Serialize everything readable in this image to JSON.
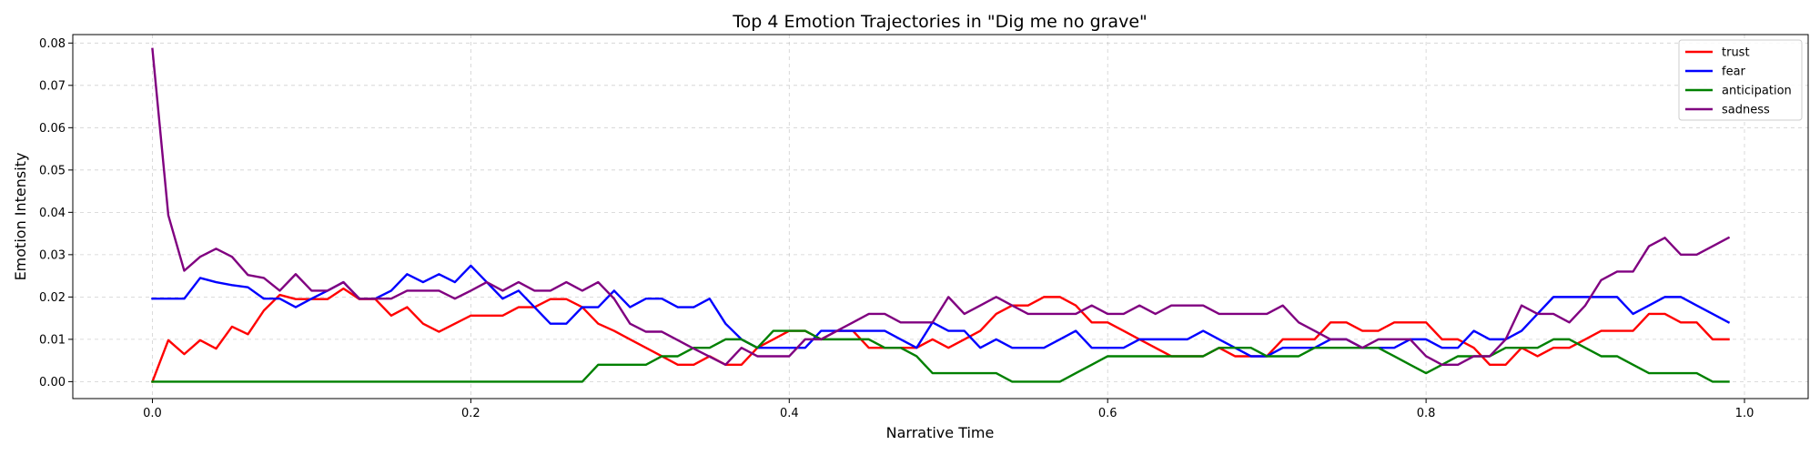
{
  "chart_data": {
    "type": "line",
    "title": "Top 4 Emotion Trajectories in \"Dig me no grave\"",
    "xlabel": "Narrative Time",
    "ylabel": "Emotion Intensity",
    "xlim": [
      -0.05,
      1.04
    ],
    "ylim": [
      -0.004,
      0.082
    ],
    "xticks": [
      0.0,
      0.2,
      0.4,
      0.6,
      0.8,
      1.0
    ],
    "xtick_labels": [
      "0.0",
      "0.2",
      "0.4",
      "0.6",
      "0.8",
      "1.0"
    ],
    "yticks": [
      0.0,
      0.01,
      0.02,
      0.03,
      0.04,
      0.05,
      0.06,
      0.07,
      0.08
    ],
    "ytick_labels": [
      "0.00",
      "0.01",
      "0.02",
      "0.03",
      "0.04",
      "0.05",
      "0.06",
      "0.07",
      "0.08"
    ],
    "grid": true,
    "legend_position": "top-right",
    "x": [
      0.0,
      0.01,
      0.02,
      0.03,
      0.04,
      0.05,
      0.06,
      0.07,
      0.08,
      0.09,
      0.1,
      0.11,
      0.12,
      0.13,
      0.14,
      0.15,
      0.16,
      0.17,
      0.18,
      0.19,
      0.2,
      0.21,
      0.22,
      0.23,
      0.24,
      0.25,
      0.26,
      0.27,
      0.28,
      0.29,
      0.3,
      0.31,
      0.32,
      0.33,
      0.34,
      0.35,
      0.36,
      0.37,
      0.38,
      0.39,
      0.4,
      0.41,
      0.42,
      0.43,
      0.44,
      0.45,
      0.46,
      0.47,
      0.48,
      0.49,
      0.5,
      0.51,
      0.52,
      0.53,
      0.54,
      0.55,
      0.56,
      0.57,
      0.58,
      0.59,
      0.6,
      0.61,
      0.62,
      0.63,
      0.64,
      0.65,
      0.66,
      0.67,
      0.68,
      0.69,
      0.7,
      0.71,
      0.72,
      0.73,
      0.74,
      0.75,
      0.76,
      0.77,
      0.78,
      0.79,
      0.8,
      0.81,
      0.82,
      0.83,
      0.84,
      0.85,
      0.86,
      0.87,
      0.88,
      0.89,
      0.9,
      0.91,
      0.92,
      0.93,
      0.94,
      0.95,
      0.96,
      0.97,
      0.98,
      0.99
    ],
    "series": [
      {
        "name": "trust",
        "color": "#ff0000",
        "values": [
          0.0,
          0.0098,
          0.0065,
          0.0098,
          0.0078,
          0.013,
          0.0112,
          0.0168,
          0.0205,
          0.0195,
          0.0195,
          0.0195,
          0.022,
          0.0195,
          0.0195,
          0.0156,
          0.0176,
          0.0137,
          0.0118,
          0.0137,
          0.0156,
          0.0156,
          0.0156,
          0.0176,
          0.0176,
          0.0195,
          0.0195,
          0.0176,
          0.0137,
          0.012,
          0.01,
          0.008,
          0.006,
          0.004,
          0.004,
          0.006,
          0.004,
          0.004,
          0.008,
          0.01,
          0.012,
          0.012,
          0.01,
          0.012,
          0.012,
          0.008,
          0.008,
          0.008,
          0.008,
          0.01,
          0.008,
          0.01,
          0.012,
          0.016,
          0.018,
          0.018,
          0.02,
          0.02,
          0.018,
          0.014,
          0.014,
          0.012,
          0.01,
          0.008,
          0.006,
          0.006,
          0.006,
          0.008,
          0.006,
          0.006,
          0.006,
          0.01,
          0.01,
          0.01,
          0.014,
          0.014,
          0.012,
          0.012,
          0.014,
          0.014,
          0.014,
          0.01,
          0.01,
          0.008,
          0.004,
          0.004,
          0.008,
          0.006,
          0.008,
          0.008,
          0.01,
          0.012,
          0.012,
          0.012,
          0.016,
          0.016,
          0.014,
          0.014,
          0.01,
          0.01
        ]
      },
      {
        "name": "fear",
        "color": "#0000ff",
        "values": [
          0.0196,
          0.0196,
          0.0196,
          0.0245,
          0.0235,
          0.0228,
          0.0223,
          0.0196,
          0.0196,
          0.0176,
          0.0196,
          0.0215,
          0.0235,
          0.0196,
          0.0196,
          0.0215,
          0.0254,
          0.0235,
          0.0254,
          0.0235,
          0.0274,
          0.0235,
          0.0196,
          0.0215,
          0.0176,
          0.0137,
          0.0137,
          0.0176,
          0.0176,
          0.0215,
          0.0176,
          0.0196,
          0.0196,
          0.0176,
          0.0176,
          0.0196,
          0.0137,
          0.01,
          0.008,
          0.008,
          0.008,
          0.008,
          0.012,
          0.012,
          0.012,
          0.012,
          0.012,
          0.01,
          0.008,
          0.014,
          0.012,
          0.012,
          0.008,
          0.01,
          0.008,
          0.008,
          0.008,
          0.01,
          0.012,
          0.008,
          0.008,
          0.008,
          0.01,
          0.01,
          0.01,
          0.01,
          0.012,
          0.01,
          0.008,
          0.006,
          0.006,
          0.008,
          0.008,
          0.008,
          0.01,
          0.01,
          0.008,
          0.008,
          0.008,
          0.01,
          0.01,
          0.008,
          0.008,
          0.012,
          0.01,
          0.01,
          0.012,
          0.016,
          0.02,
          0.02,
          0.02,
          0.02,
          0.02,
          0.016,
          0.018,
          0.02,
          0.02,
          0.018,
          0.016,
          0.014
        ]
      },
      {
        "name": "anticipation",
        "color": "#008000",
        "values": [
          0.0,
          0.0,
          0.0,
          0.0,
          0.0,
          0.0,
          0.0,
          0.0,
          0.0,
          0.0,
          0.0,
          0.0,
          0.0,
          0.0,
          0.0,
          0.0,
          0.0,
          0.0,
          0.0,
          0.0,
          0.0,
          0.0,
          0.0,
          0.0,
          0.0,
          0.0,
          0.0,
          0.0,
          0.004,
          0.004,
          0.004,
          0.004,
          0.006,
          0.006,
          0.008,
          0.008,
          0.01,
          0.01,
          0.008,
          0.012,
          0.012,
          0.012,
          0.01,
          0.01,
          0.01,
          0.01,
          0.008,
          0.008,
          0.006,
          0.002,
          0.002,
          0.002,
          0.002,
          0.002,
          0.0,
          0.0,
          0.0,
          0.0,
          0.002,
          0.004,
          0.006,
          0.006,
          0.006,
          0.006,
          0.006,
          0.006,
          0.006,
          0.008,
          0.008,
          0.008,
          0.006,
          0.006,
          0.006,
          0.008,
          0.008,
          0.008,
          0.008,
          0.008,
          0.006,
          0.004,
          0.002,
          0.004,
          0.006,
          0.006,
          0.006,
          0.008,
          0.008,
          0.008,
          0.01,
          0.01,
          0.008,
          0.006,
          0.006,
          0.004,
          0.002,
          0.002,
          0.002,
          0.002,
          0.0,
          0.0
        ]
      },
      {
        "name": "sadness",
        "color": "#800080",
        "values": [
          0.0786,
          0.0393,
          0.0262,
          0.0295,
          0.0314,
          0.0295,
          0.0252,
          0.0245,
          0.0215,
          0.0254,
          0.0215,
          0.0215,
          0.0235,
          0.0196,
          0.0196,
          0.0196,
          0.0215,
          0.0215,
          0.0215,
          0.0196,
          0.0215,
          0.0235,
          0.0215,
          0.0235,
          0.0215,
          0.0215,
          0.0235,
          0.0215,
          0.0235,
          0.0196,
          0.0137,
          0.0118,
          0.0118,
          0.0098,
          0.0078,
          0.0059,
          0.004,
          0.008,
          0.006,
          0.006,
          0.006,
          0.01,
          0.01,
          0.012,
          0.014,
          0.016,
          0.016,
          0.014,
          0.014,
          0.014,
          0.02,
          0.016,
          0.018,
          0.02,
          0.018,
          0.016,
          0.016,
          0.016,
          0.016,
          0.018,
          0.016,
          0.016,
          0.018,
          0.016,
          0.018,
          0.018,
          0.018,
          0.016,
          0.016,
          0.016,
          0.016,
          0.018,
          0.014,
          0.012,
          0.01,
          0.01,
          0.008,
          0.01,
          0.01,
          0.01,
          0.006,
          0.004,
          0.004,
          0.006,
          0.006,
          0.01,
          0.018,
          0.016,
          0.016,
          0.014,
          0.018,
          0.024,
          0.026,
          0.026,
          0.032,
          0.034,
          0.03,
          0.03,
          0.032,
          0.034
        ]
      }
    ]
  }
}
